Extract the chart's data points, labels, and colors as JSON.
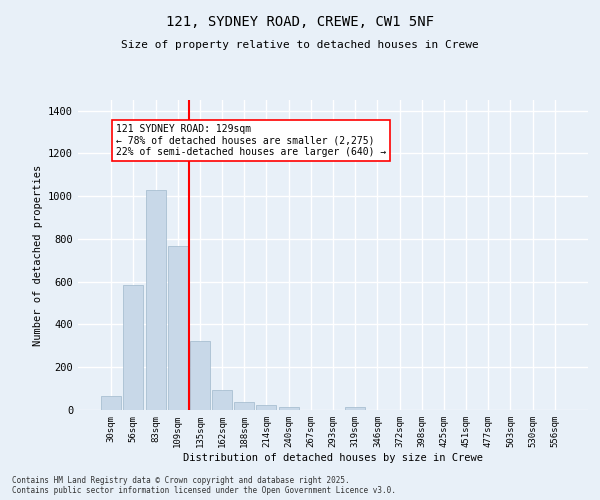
{
  "title_line1": "121, SYDNEY ROAD, CREWE, CW1 5NF",
  "title_line2": "Size of property relative to detached houses in Crewe",
  "xlabel": "Distribution of detached houses by size in Crewe",
  "ylabel": "Number of detached properties",
  "bar_color": "#c8d8e8",
  "bar_edge_color": "#a0b8cc",
  "categories": [
    "30sqm",
    "56sqm",
    "83sqm",
    "109sqm",
    "135sqm",
    "162sqm",
    "188sqm",
    "214sqm",
    "240sqm",
    "267sqm",
    "293sqm",
    "319sqm",
    "346sqm",
    "372sqm",
    "398sqm",
    "425sqm",
    "451sqm",
    "477sqm",
    "503sqm",
    "530sqm",
    "556sqm"
  ],
  "values": [
    65,
    585,
    1030,
    765,
    325,
    95,
    38,
    25,
    15,
    0,
    0,
    15,
    0,
    0,
    0,
    0,
    0,
    0,
    0,
    0,
    0
  ],
  "vline_index": 3.5,
  "vline_color": "red",
  "annotation_text": "121 SYDNEY ROAD: 129sqm\n← 78% of detached houses are smaller (2,275)\n22% of semi-detached houses are larger (640) →",
  "annotation_box_color": "white",
  "annotation_border_color": "red",
  "ylim": [
    0,
    1450
  ],
  "yticks": [
    0,
    200,
    400,
    600,
    800,
    1000,
    1200,
    1400
  ],
  "background_color": "#e8f0f8",
  "grid_color": "white",
  "footer_line1": "Contains HM Land Registry data © Crown copyright and database right 2025.",
  "footer_line2": "Contains public sector information licensed under the Open Government Licence v3.0."
}
